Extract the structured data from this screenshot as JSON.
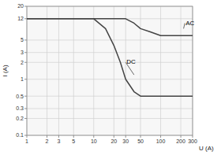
{
  "chart_data": {
    "type": "line",
    "title": "",
    "xlabel": "U (A)",
    "ylabel": "I (A)",
    "log": true,
    "grid": true,
    "xlim": [
      1,
      300
    ],
    "ylim": [
      0.1,
      20
    ],
    "xticks": [
      1,
      2,
      3,
      5,
      10,
      20,
      30,
      50,
      100,
      200,
      300
    ],
    "yticks": [
      0.1,
      0.2,
      0.3,
      0.5,
      1,
      2,
      3,
      5,
      12,
      20
    ],
    "series": [
      {
        "color": "#444444",
        "x": [
          1,
          10,
          20,
          30,
          40,
          50,
          70,
          100,
          150,
          200,
          250,
          300
        ],
        "values": [
          12,
          12,
          12,
          12,
          10,
          8,
          7,
          6,
          6,
          6,
          6,
          6
        ]
      },
      {
        "color": "#444444",
        "x": [
          1,
          5,
          10,
          15,
          20,
          25,
          30,
          40,
          50,
          100,
          200,
          300
        ],
        "values": [
          12,
          12,
          12,
          8,
          4,
          2,
          1,
          0.6,
          0.5,
          0.5,
          0.5,
          0.5
        ]
      }
    ],
    "annotations": [
      {
        "text": "AC",
        "x": 220,
        "y": 8,
        "text_x": 230,
        "text_y": 10
      },
      {
        "text": "DC",
        "x": 40,
        "y": 1.2,
        "text_x": 30,
        "text_y": 2.0
      }
    ]
  }
}
